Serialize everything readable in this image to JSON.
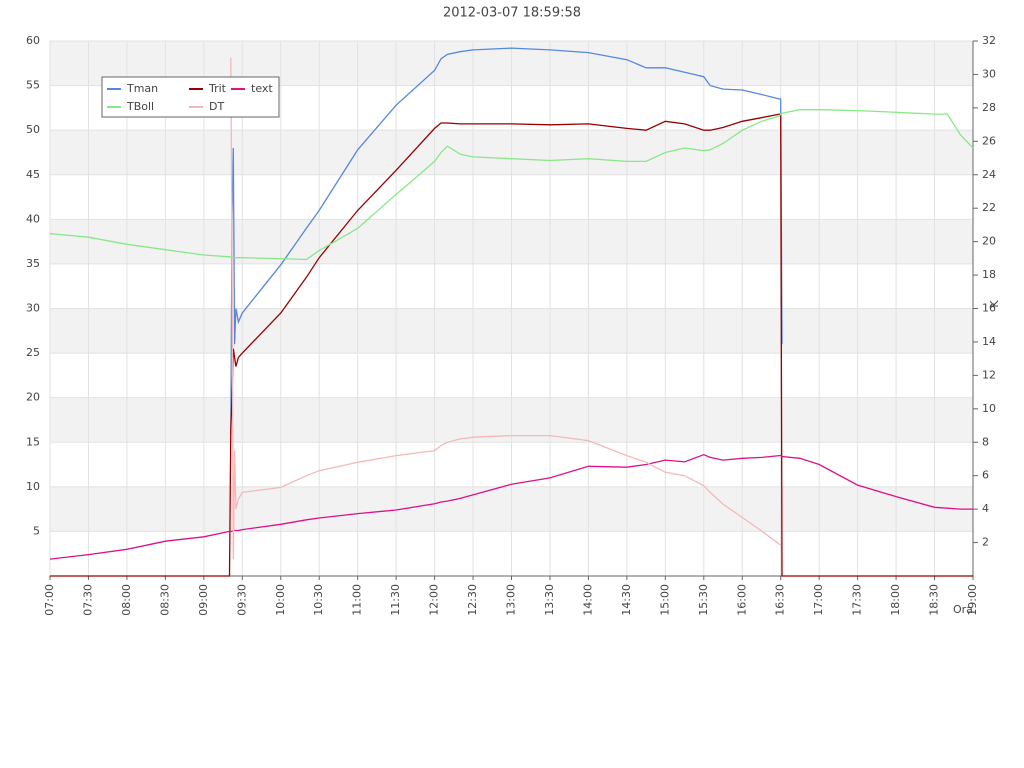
{
  "chart_data": {
    "type": "line",
    "title": "2012-03-07 18:59:58",
    "x_label": "Ora",
    "y2_label": "K",
    "x": [
      "07:00",
      "07:30",
      "08:00",
      "08:30",
      "09:00",
      "09:20",
      "09:21",
      "09:22",
      "09:23",
      "09:24",
      "09:25",
      "09:27",
      "09:30",
      "10:00",
      "10:20",
      "10:30",
      "11:00",
      "11:30",
      "12:00",
      "12:05",
      "12:10",
      "12:20",
      "12:30",
      "13:00",
      "13:30",
      "14:00",
      "14:30",
      "14:45",
      "15:00",
      "15:15",
      "15:30",
      "15:35",
      "15:45",
      "16:00",
      "16:15",
      "16:29",
      "16:30",
      "16:31",
      "16:45",
      "17:00",
      "17:30",
      "18:00",
      "18:30",
      "18:40",
      "18:50",
      "19:00"
    ],
    "series": [
      {
        "name": "Tman",
        "color": "#5588dd",
        "values": [
          null,
          null,
          null,
          null,
          null,
          null,
          16,
          40,
          48,
          26,
          30,
          28.5,
          29.5,
          34.9,
          39,
          41,
          47.8,
          52.8,
          56.7,
          58,
          58.5,
          58.8,
          59,
          59.2,
          59,
          58.7,
          57.9,
          57,
          57,
          56.5,
          56,
          55,
          54.6,
          54.5,
          54,
          53.5,
          53.5,
          26,
          null,
          null,
          null,
          null,
          null,
          null,
          null,
          null
        ]
      },
      {
        "name": "Trit",
        "color": "#990000",
        "values": [
          0,
          0,
          0,
          0,
          0,
          0,
          16.5,
          20,
          25.5,
          24.5,
          23.5,
          24.5,
          25,
          29.5,
          33.5,
          35.7,
          41,
          45.5,
          50.2,
          50.8,
          50.8,
          50.7,
          50.7,
          50.7,
          50.6,
          50.7,
          50.2,
          50,
          51,
          50.7,
          50,
          50,
          50.3,
          51,
          51.4,
          51.8,
          51.8,
          0,
          0,
          0,
          0,
          0,
          0,
          0,
          0,
          0
        ]
      },
      {
        "name": "text",
        "color": "#dd1188",
        "values": [
          1.9,
          2.4,
          3,
          3.9,
          4.4,
          5,
          5,
          5,
          5.1,
          5.1,
          5.1,
          5.1,
          5.2,
          5.8,
          6.3,
          6.5,
          7,
          7.4,
          8.1,
          8.3,
          8.4,
          8.7,
          9.1,
          10.3,
          11,
          12.3,
          12.2,
          12.5,
          13,
          12.8,
          13.6,
          13.3,
          13,
          13.2,
          13.3,
          13.5,
          13.5,
          13.4,
          13.2,
          12.5,
          10.2,
          8.9,
          7.7,
          7.6,
          7.5,
          7.5
        ]
      },
      {
        "name": "TBoll",
        "color": "#88e888",
        "values": [
          38.4,
          38,
          37.2,
          36.6,
          36,
          35.8,
          35.8,
          35.8,
          35.7,
          35.7,
          35.7,
          35.7,
          35.7,
          35.6,
          35.5,
          36.5,
          39,
          42.8,
          46.5,
          47.5,
          48.2,
          47.3,
          47,
          46.8,
          46.6,
          46.8,
          46.5,
          46.5,
          47.5,
          48,
          47.7,
          47.8,
          48.5,
          50,
          51,
          51.6,
          51.8,
          51.9,
          52.3,
          52.3,
          52.2,
          52,
          51.8,
          51.8,
          49.5,
          48
        ]
      },
      {
        "name": "DT",
        "color": "#f5b8b8",
        "axis": "y2",
        "values": [
          null,
          null,
          null,
          null,
          null,
          null,
          31,
          20,
          1,
          7.5,
          4,
          4.6,
          5,
          5.3,
          6,
          6.3,
          6.8,
          7.2,
          7.5,
          7.8,
          8,
          8.2,
          8.3,
          8.4,
          8.4,
          8.1,
          7.2,
          6.8,
          6.2,
          6,
          5.4,
          5,
          4.3,
          3.5,
          2.7,
          1.9,
          1.85,
          null,
          null,
          null,
          null,
          null,
          null,
          null,
          null,
          null
        ]
      }
    ],
    "xlim": [
      "07:00",
      "19:00"
    ],
    "xticks": [
      "07:00",
      "07:30",
      "08:00",
      "08:30",
      "09:00",
      "09:30",
      "10:00",
      "10:30",
      "11:00",
      "11:30",
      "12:00",
      "12:30",
      "13:00",
      "13:30",
      "14:00",
      "14:30",
      "15:00",
      "15:30",
      "16:00",
      "16:30",
      "17:00",
      "17:30",
      "18:00",
      "18:30",
      "19:00"
    ],
    "ylim": [
      0,
      60
    ],
    "yticks": [
      5,
      10,
      15,
      20,
      25,
      30,
      35,
      40,
      45,
      50,
      55,
      60
    ],
    "y2lim": [
      0,
      32
    ],
    "y2ticks": [
      2,
      4,
      6,
      8,
      10,
      12,
      14,
      16,
      18,
      20,
      22,
      24,
      26,
      28,
      30,
      32
    ],
    "grid": true,
    "grid_bands": true,
    "legend": "upper left"
  }
}
